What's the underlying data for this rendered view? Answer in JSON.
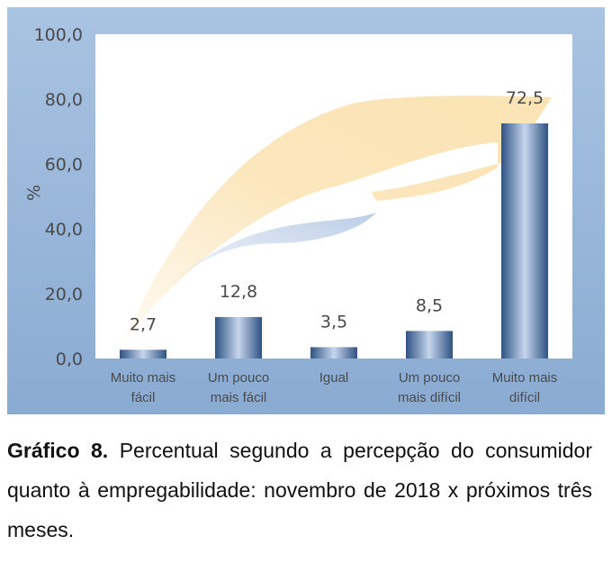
{
  "chart_data": {
    "type": "bar",
    "categories": [
      [
        "Muito mais",
        "fácil"
      ],
      [
        "Um pouco",
        "mais fácil"
      ],
      [
        "Igual"
      ],
      [
        "Um pouco",
        "mais difícil"
      ],
      [
        "Muito mais",
        "difícil"
      ]
    ],
    "values": [
      2.7,
      12.8,
      3.5,
      8.5,
      72.5
    ],
    "value_labels": [
      "2,7",
      "12,8",
      "3,5",
      "8,5",
      "72,5"
    ],
    "ylabel": "%",
    "ylim": [
      0,
      100
    ],
    "yticks": [
      "0,0",
      "20,0",
      "40,0",
      "60,0",
      "80,0",
      "100,0"
    ],
    "grid": false,
    "colors": {
      "frame": "#8fb1d6",
      "plot_background": "#ffffff",
      "bar_dark": "#385d8a",
      "bar_light": "#c6d6ec",
      "text": "#4a4a4a",
      "swoosh_orange": "#fbe3b4",
      "swoosh_blue": "#c9d7ec"
    }
  },
  "caption": {
    "label": "Gráfico 8.",
    "text": "Percentual segundo a percepção do consumidor quanto à empregabilidade: novembro de 2018 x próximos três meses."
  }
}
